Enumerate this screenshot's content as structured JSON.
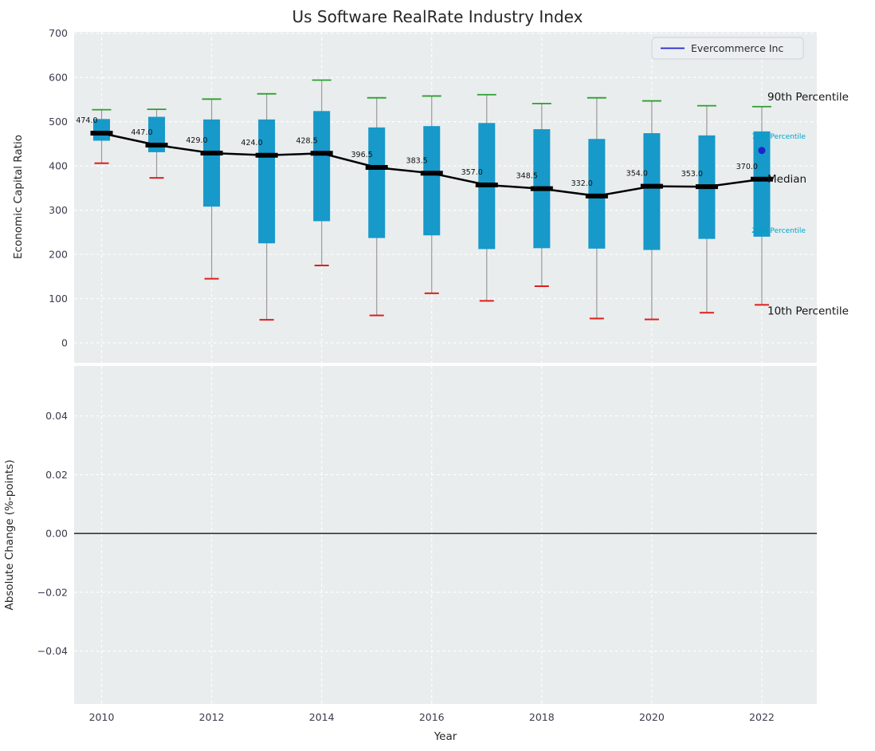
{
  "figure": {
    "title": "Us Software RealRate Industry Index",
    "xlabel": "Year",
    "xtick_values": [
      2010,
      2012,
      2014,
      2016,
      2018,
      2020,
      2022
    ],
    "xtick_labels": [
      "2010",
      "2012",
      "2014",
      "2016",
      "2018",
      "2020",
      "2022"
    ],
    "legend": {
      "label": "Evercommerce Inc"
    },
    "top": {
      "ylabel": "Economic Capital Ratio",
      "ytick_values": [
        0,
        100,
        200,
        300,
        400,
        500,
        600,
        700
      ],
      "ytick_labels": [
        "0",
        "100",
        "200",
        "300",
        "400",
        "500",
        "600",
        "700"
      ],
      "annotations": {
        "p90": "90th Percentile",
        "p75": "75th Percentile",
        "median": "Median",
        "p25": "25th Percentile",
        "p10": "10th Percentile"
      }
    },
    "bottom": {
      "ylabel": "Absolute Change (%-points)",
      "ytick_values": [
        -0.04,
        -0.02,
        0,
        0.02,
        0.04
      ],
      "ytick_labels": [
        "−0.04",
        "−0.02",
        "0.00",
        "0.02",
        "0.04"
      ]
    }
  },
  "colors": {
    "bar": "#1799c9",
    "p90_cap": "#2e9e2e",
    "p10_cap": "#e21c1c",
    "median_line": "#000000",
    "whisker": "#9a9a9a",
    "company_point": "#2222cc",
    "legend_line": "#2222cc",
    "percentile_text": "#00a2c7",
    "zero_line": "#000000"
  },
  "chart_data": [
    {
      "type": "boxplot",
      "title": "Us Software RealRate Industry Index",
      "xlabel": "Year",
      "ylabel": "Economic Capital Ratio",
      "xlim": [
        2009.5,
        2023
      ],
      "ylim": [
        -45,
        703
      ],
      "grid": true,
      "legend_position": "upper right",
      "x": [
        2010,
        2011,
        2012,
        2013,
        2014,
        2015,
        2016,
        2017,
        2018,
        2019,
        2020,
        2021,
        2022
      ],
      "series": [
        {
          "key": "p90",
          "name": "90th Percentile",
          "values": [
            527,
            528,
            551,
            563,
            594,
            554,
            558,
            561,
            541,
            554,
            547,
            536,
            534
          ]
        },
        {
          "key": "p75",
          "name": "75th Percentile",
          "values": [
            506,
            511,
            505,
            505,
            524,
            487,
            490,
            497,
            483,
            461,
            474,
            469,
            478
          ]
        },
        {
          "key": "median",
          "name": "Median",
          "values": [
            474,
            447,
            429,
            424,
            428.5,
            396.5,
            383.5,
            357,
            348.5,
            332,
            354,
            353,
            370
          ]
        },
        {
          "key": "p25",
          "name": "25th Percentile",
          "values": [
            457,
            431,
            308,
            225,
            275,
            237,
            243,
            212,
            214,
            213,
            210,
            235,
            240
          ]
        },
        {
          "key": "p10",
          "name": "10th Percentile",
          "values": [
            406,
            373,
            145,
            52,
            175,
            62,
            112,
            95,
            128,
            55,
            53,
            68,
            86
          ]
        }
      ],
      "median_labels": [
        "474.0",
        "447.0",
        "429.0",
        "424.0",
        "428.5",
        "396.5",
        "383.5",
        "357.0",
        "348.5",
        "332.0",
        "354.0",
        "353.0",
        "370.0"
      ],
      "point": {
        "name": "Evercommerce Inc",
        "x": 2022,
        "y": 435
      }
    },
    {
      "type": "line",
      "ylabel": "Absolute Change (%-points)",
      "xlabel": "Year",
      "xlim": [
        2009.5,
        2023
      ],
      "ylim": [
        -0.058,
        0.057
      ],
      "grid": true,
      "series": [],
      "zero_line": 0.0
    }
  ]
}
